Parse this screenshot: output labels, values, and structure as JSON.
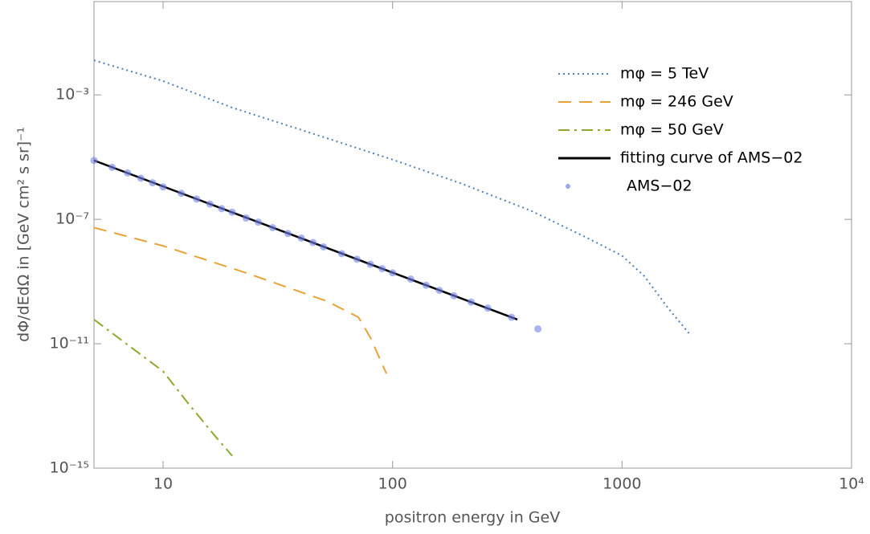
{
  "chart_data": {
    "type": "line",
    "xlabel": "positron energy in GeV",
    "ylabel": "dΦ/dEdΩ  in [GeV cm² s sr]⁻¹",
    "xscale": "log",
    "yscale": "log",
    "xlim": [
      5,
      10000
    ],
    "ylim": [
      1e-15,
      1
    ],
    "xticks": [
      10,
      100,
      1000,
      {
        "value": 10000,
        "label": "10⁴"
      }
    ],
    "yticks": [
      {
        "value": 0.001,
        "label": "10⁻³"
      },
      {
        "value": 1e-07,
        "label": "10⁻⁷"
      },
      {
        "value": 1e-11,
        "label": "10⁻¹¹"
      },
      {
        "value": 1e-15,
        "label": "10⁻¹⁵"
      }
    ],
    "legend": "top-right",
    "series": [
      {
        "name": "mφ = 5 TeV",
        "color": "#4f7fb8",
        "line_style": "dotted",
        "x": [
          5,
          10,
          20,
          50,
          100,
          200,
          400,
          700,
          1000,
          1250,
          1600,
          2000
        ],
        "values": [
          0.013,
          0.0028,
          0.00039,
          4.4e-05,
          8.3e-06,
          1.4e-06,
          1.9e-07,
          2.6e-08,
          6.8e-09,
          1.5e-09,
          1.3e-10,
          1.8e-11
        ]
      },
      {
        "name": "mφ = 246 GeV",
        "color": "#e8a23a",
        "line_style": "dashed",
        "x": [
          5,
          10,
          23,
          52,
          71,
          80,
          94
        ],
        "values": [
          5.4e-08,
          1.4e-08,
          1.9e-09,
          2.3e-10,
          7.1e-11,
          1.6e-11,
          1.1e-12
        ]
      },
      {
        "name": "mφ = 50 GeV",
        "color": "#8aab2d",
        "line_style": "dashdot",
        "x": [
          5,
          10,
          13,
          17,
          20
        ],
        "values": [
          6e-11,
          1.3e-12,
          1.1e-13,
          1e-14,
          2.5e-15
        ]
      },
      {
        "name": "fitting curve of AMS−02",
        "color": "#000000",
        "line_style": "solid",
        "x": [
          5,
          350
        ],
        "values": [
          7.8e-06,
          6e-11
        ]
      },
      {
        "name": "AMS−02",
        "color": "#6f82e8",
        "line_style": "markers",
        "x": [
          5,
          6,
          7,
          8,
          9,
          10,
          12,
          14,
          16,
          18,
          20,
          23,
          26,
          30,
          35,
          40,
          45,
          50,
          60,
          70,
          80,
          90,
          100,
          120,
          140,
          160,
          185,
          220,
          260,
          330,
          430
        ],
        "values": [
          7.8e-06,
          4.7e-06,
          3.1e-06,
          2.1e-06,
          1.5e-06,
          1.1e-06,
          6.9e-07,
          4.5e-07,
          3.1e-07,
          2.2e-07,
          1.7e-07,
          1.1e-07,
          8.1e-08,
          5.4e-08,
          3.5e-08,
          2.5e-08,
          1.8e-08,
          1.3e-08,
          7.9e-09,
          5.2e-09,
          3.6e-09,
          2.6e-09,
          1.9e-09,
          1.2e-09,
          7.6e-10,
          5.2e-10,
          3.5e-10,
          2.2e-10,
          1.4e-10,
          7.1e-11,
          3e-11
        ]
      }
    ]
  }
}
